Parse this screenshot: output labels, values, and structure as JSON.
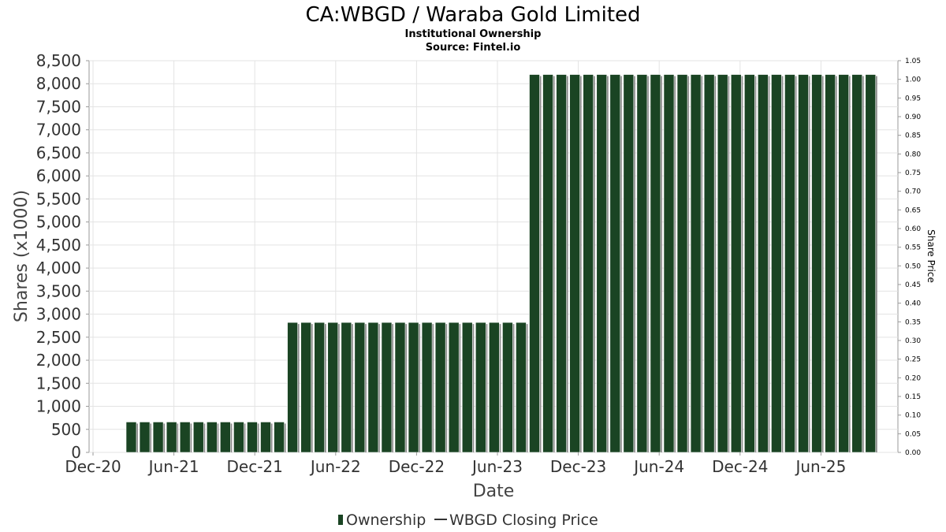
{
  "chart_data": {
    "type": "bar",
    "title": "CA:WBGD / Waraba Gold Limited",
    "subtitle": "Institutional Ownership",
    "source": "Source: Fintel.io",
    "xlabel": "Date",
    "ylabel": "Shares (x1000)",
    "ylabel_right": "Share Price",
    "ylim": [
      0,
      8500
    ],
    "ylim_right": [
      0,
      1.05
    ],
    "yticks": [
      0,
      500,
      1000,
      1500,
      2000,
      2500,
      3000,
      3500,
      4000,
      4500,
      5000,
      5500,
      6000,
      6500,
      7000,
      7500,
      8000,
      8500
    ],
    "yticks_left_labels": [
      "0",
      "500",
      "1,000",
      "1,500",
      "2,000",
      "2,500",
      "3,000",
      "3,500",
      "4,000",
      "4,500",
      "5,000",
      "5,500",
      "6,000",
      "6,500",
      "7,000",
      "7,500",
      "8,000",
      "8,500"
    ],
    "yticks_right": [
      "0.00",
      "0.05",
      "0.10",
      "0.15",
      "0.20",
      "0.25",
      "0.30",
      "0.35",
      "0.40",
      "0.45",
      "0.50",
      "0.55",
      "0.60",
      "0.65",
      "0.70",
      "0.75",
      "0.80",
      "0.85",
      "0.90",
      "0.95",
      "1.00",
      "1.05"
    ],
    "xticks": [
      "Dec-20",
      "Jun-21",
      "Dec-21",
      "Jun-22",
      "Dec-22",
      "Jun-23",
      "Dec-23",
      "Jun-24",
      "Dec-24",
      "Jun-25"
    ],
    "grid": true,
    "legend_position": "bottom",
    "series": [
      {
        "name": "Ownership",
        "color": "#1a4423",
        "values": [
          660,
          660,
          660,
          660,
          660,
          660,
          660,
          660,
          660,
          660,
          660,
          660,
          2820,
          2820,
          2820,
          2820,
          2820,
          2820,
          2820,
          2820,
          2820,
          2820,
          2820,
          2820,
          2820,
          2820,
          2820,
          2820,
          2820,
          2820,
          8200,
          8200,
          8200,
          8200,
          8200,
          8200,
          8200,
          8200,
          8200,
          8200,
          8200,
          8200,
          8200,
          8200,
          8200,
          8200,
          8200,
          8200,
          8200,
          8200,
          8200,
          8200,
          8200,
          8200,
          8200,
          8200
        ]
      },
      {
        "name": "WBGD Closing Price",
        "color": "#333333",
        "values": []
      }
    ]
  }
}
